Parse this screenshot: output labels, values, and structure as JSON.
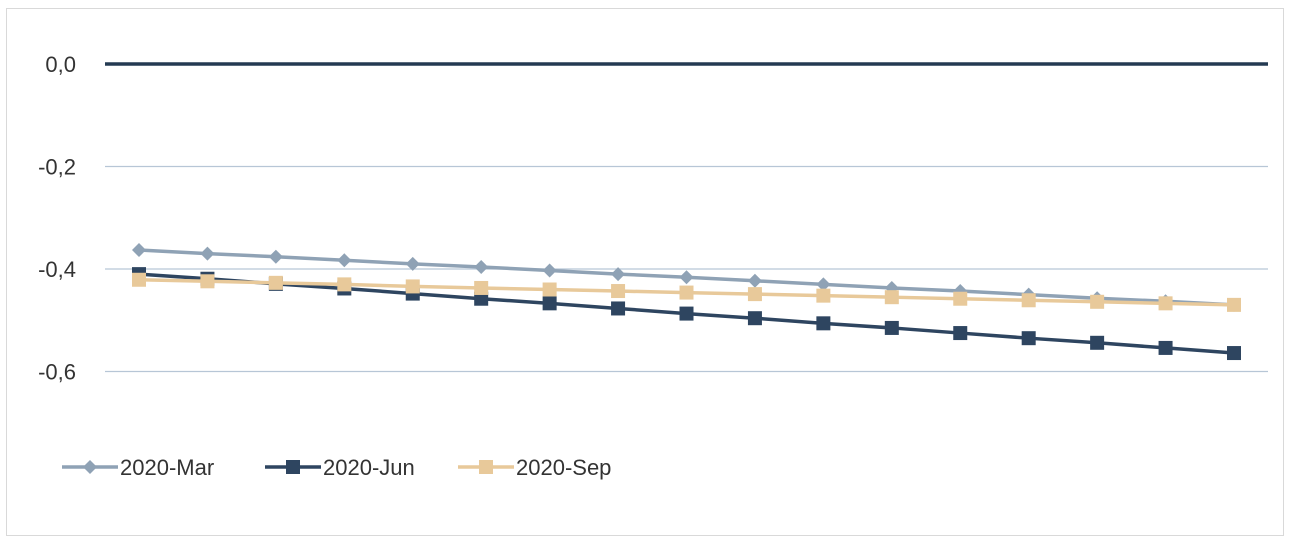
{
  "chart_data": {
    "type": "line",
    "title": "",
    "xlabel": "",
    "ylabel": "",
    "ylim": [
      -0.8,
      0.0
    ],
    "yticks": [
      "0,0",
      "-0,2",
      "-0,4",
      "-0,6"
    ],
    "ytick_values": [
      0.0,
      -0.2,
      -0.4,
      -0.6
    ],
    "grid": true,
    "legend_position": "bottom-left",
    "x": [
      1,
      2,
      3,
      4,
      5,
      6,
      7,
      8,
      9,
      10,
      11,
      12,
      13,
      14,
      15,
      16,
      17
    ],
    "series": [
      {
        "name": "2020-Mar",
        "color": "#8fa2b5",
        "marker": "diamond",
        "values": [
          -0.363,
          -0.37,
          -0.376,
          -0.383,
          -0.39,
          -0.396,
          -0.403,
          -0.41,
          -0.416,
          -0.423,
          -0.43,
          -0.437,
          -0.443,
          -0.45,
          -0.457,
          -0.463,
          -0.47
        ]
      },
      {
        "name": "2020-Jun",
        "color": "#2e4560",
        "marker": "square",
        "values": [
          -0.41,
          -0.419,
          -0.429,
          -0.438,
          -0.448,
          -0.458,
          -0.467,
          -0.477,
          -0.487,
          -0.496,
          -0.506,
          -0.515,
          -0.525,
          -0.535,
          -0.544,
          -0.554,
          -0.564
        ]
      },
      {
        "name": "2020-Sep",
        "color": "#e8c99a",
        "marker": "square",
        "values": [
          -0.421,
          -0.424,
          -0.427,
          -0.43,
          -0.434,
          -0.437,
          -0.44,
          -0.443,
          -0.446,
          -0.449,
          -0.452,
          -0.455,
          -0.458,
          -0.461,
          -0.464,
          -0.467,
          -0.47
        ]
      }
    ],
    "colors": {
      "zero_line": "#243a52",
      "grid": "#b7c6d6",
      "text": "#333333"
    }
  }
}
